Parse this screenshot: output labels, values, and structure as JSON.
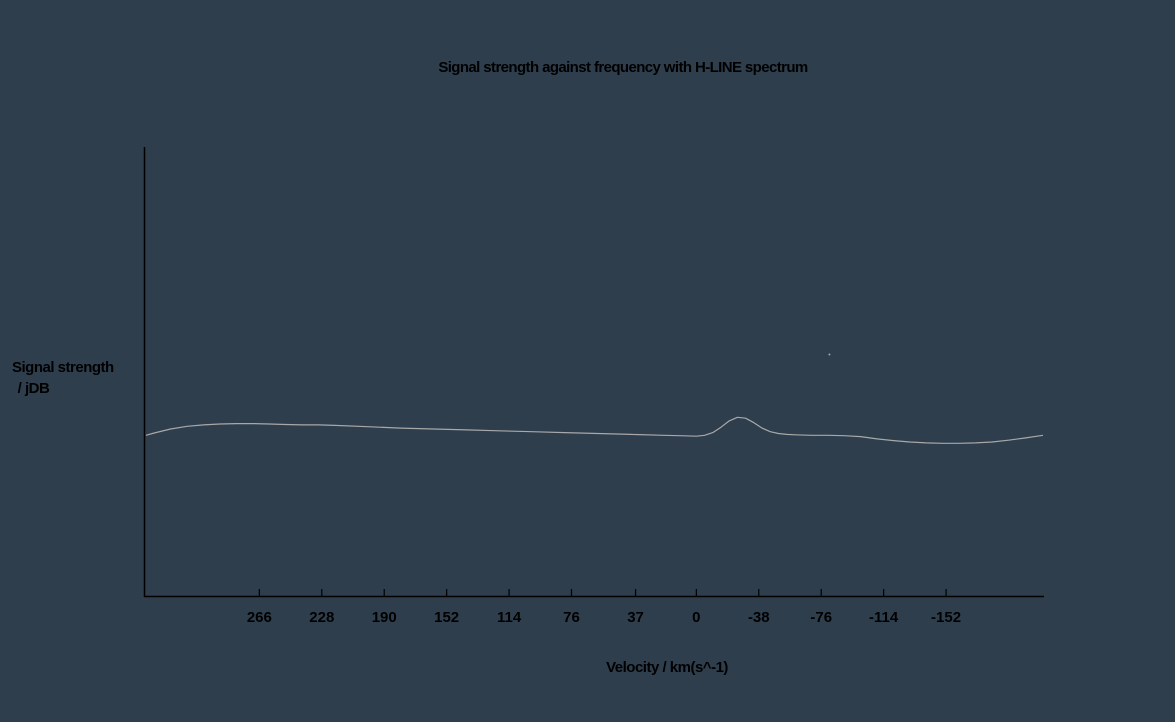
{
  "chart_data": {
    "type": "line",
    "title": "Signal strength against frequency with H-LINE spectrum",
    "xlabel": "Velocity / km(s^-1)",
    "ylabel_line1": "Signal strength",
    "ylabel_line2": " / jDB",
    "x_reversed": true,
    "xlim": [
      335,
      -211
    ],
    "ylim": [
      0,
      1
    ],
    "grid": false,
    "x_ticks": [
      266,
      228,
      190,
      152,
      114,
      76,
      37,
      0,
      -38,
      -76,
      -114,
      -152
    ],
    "x_tick_labels": [
      "266",
      "228",
      "190",
      "152",
      "114",
      "76",
      "37",
      "0",
      "-38",
      "-76",
      "-114",
      "-152"
    ],
    "series": [
      {
        "color": "#a8a8a8",
        "x": [
          335,
          330,
          320,
          310,
          300,
          290,
          280,
          270,
          260,
          250,
          240,
          230,
          220,
          200,
          180,
          160,
          140,
          120,
          100,
          80,
          60,
          40,
          20,
          10,
          0,
          -5,
          -10,
          -15,
          -20,
          -25,
          -30,
          -35,
          -40,
          -45,
          -50,
          -55,
          -60,
          -70,
          -80,
          -90,
          -100,
          -110,
          -120,
          -130,
          -140,
          -150,
          -160,
          -170,
          -180,
          -190,
          -200,
          -211
        ],
        "y": [
          0.358,
          0.363,
          0.372,
          0.378,
          0.381,
          0.383,
          0.384,
          0.384,
          0.383,
          0.382,
          0.381,
          0.381,
          0.38,
          0.377,
          0.374,
          0.372,
          0.37,
          0.368,
          0.366,
          0.364,
          0.362,
          0.36,
          0.358,
          0.357,
          0.356,
          0.358,
          0.364,
          0.376,
          0.39,
          0.398,
          0.396,
          0.386,
          0.374,
          0.366,
          0.362,
          0.36,
          0.359,
          0.358,
          0.358,
          0.357,
          0.355,
          0.35,
          0.346,
          0.343,
          0.341,
          0.34,
          0.34,
          0.341,
          0.343,
          0.347,
          0.352,
          0.358
        ]
      }
    ],
    "outliers": [
      {
        "x": -81,
        "y": 0.538
      }
    ],
    "colors": {
      "background": "#2e3e4d",
      "axis": "#000000",
      "text": "#000000",
      "line": "#a8a8a8"
    }
  }
}
